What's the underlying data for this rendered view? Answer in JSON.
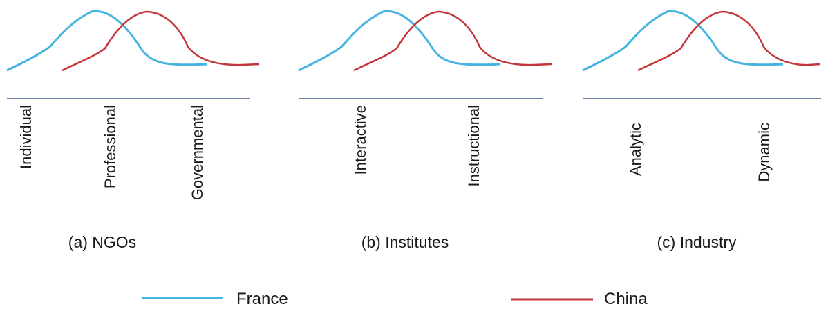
{
  "colors": {
    "france": "#45b4e0",
    "china": "#c0363a",
    "axis": "#6b82a8"
  },
  "legend": [
    {
      "label": "France",
      "color": "#45b4e0"
    },
    {
      "label": "China",
      "color": "#c0363a"
    }
  ],
  "panels": [
    {
      "caption": "(a) NGOs",
      "labels": [
        "Individual",
        "Professional",
        "Governmental"
      ]
    },
    {
      "caption": "(b) Institutes",
      "labels": [
        "Interactive",
        "Instructional"
      ]
    },
    {
      "caption": "(c) Industry",
      "labels": [
        "Analytic",
        "Dynamic"
      ]
    }
  ]
}
